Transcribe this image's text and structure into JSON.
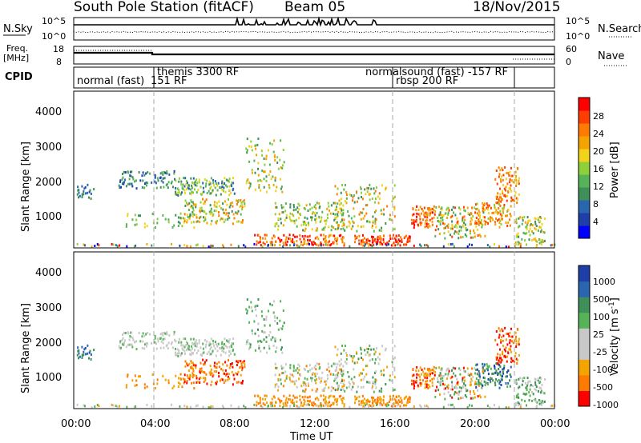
{
  "header": {
    "station": "South Pole Station (fitACF)",
    "beam": "Beam 05",
    "date": "18/Nov/2015"
  },
  "colors": {
    "power_scale": [
      "#0000ff",
      "#1f3fa8",
      "#2a66b0",
      "#3e8f5a",
      "#57b357",
      "#8fcf3a",
      "#f2d21a",
      "#f5a300",
      "#ff7a00",
      "#ff3d00",
      "#ff0000"
    ],
    "velocity_scale": [
      "#1f3fa8",
      "#2a66b0",
      "#3e8f5a",
      "#57b357",
      "#c8c8c8",
      "#c8c8c8",
      "#f5a300",
      "#ff7a00",
      "#ff0000"
    ]
  },
  "chart_data": [
    {
      "type": "line",
      "panel": "noise",
      "left_label": "N.Sky",
      "right_label": "N.Search",
      "left_ticks": [
        "10^5",
        "10^0"
      ],
      "right_ticks": [
        "10^5",
        "10^0"
      ]
    },
    {
      "type": "line",
      "panel": "frequency",
      "left_label": "Freq.",
      "left_unit": "[MHz]",
      "right_label": "Nave",
      "left_ticks": [
        "18",
        "8"
      ],
      "right_ticks": [
        "60",
        "0"
      ]
    },
    {
      "type": "table",
      "panel": "cpid",
      "label": "CPID",
      "annotations": [
        {
          "text": "normal (fast)",
          "time": 0.05
        },
        {
          "text": "151 RF",
          "time": 3.8
        },
        {
          "text": "themis 3300 RF",
          "time": 4.1
        },
        {
          "text": "normalsound (fast) -157 RF",
          "time": 14.5
        },
        {
          "text": "rbsp 200 RF",
          "time": 16.1
        }
      ]
    },
    {
      "type": "heatmap",
      "panel": "power",
      "ylabel": "Slant Range [km]",
      "y_ticks": [
        "1000",
        "2000",
        "3000",
        "4000"
      ],
      "colorbar_label": "Power [dB]",
      "colorbar_ticks": [
        "4",
        "8",
        "12",
        "16",
        "20",
        "24",
        "28"
      ]
    },
    {
      "type": "heatmap",
      "panel": "velocity",
      "ylabel": "Slant Range [km]",
      "y_ticks": [
        "1000",
        "2000",
        "3000",
        "4000"
      ],
      "colorbar_label": "Velocity [m s",
      "colorbar_label_sup": "-1",
      "colorbar_label_end": "]",
      "colorbar_ticks": [
        "1000",
        "500",
        "100",
        "25",
        "-25",
        "-100",
        "-500",
        "-1000"
      ],
      "xlabel": "Time UT",
      "x_ticks": [
        "00:00",
        "04:00",
        "08:00",
        "12:00",
        "16:00",
        "20:00",
        "00:00"
      ]
    }
  ]
}
